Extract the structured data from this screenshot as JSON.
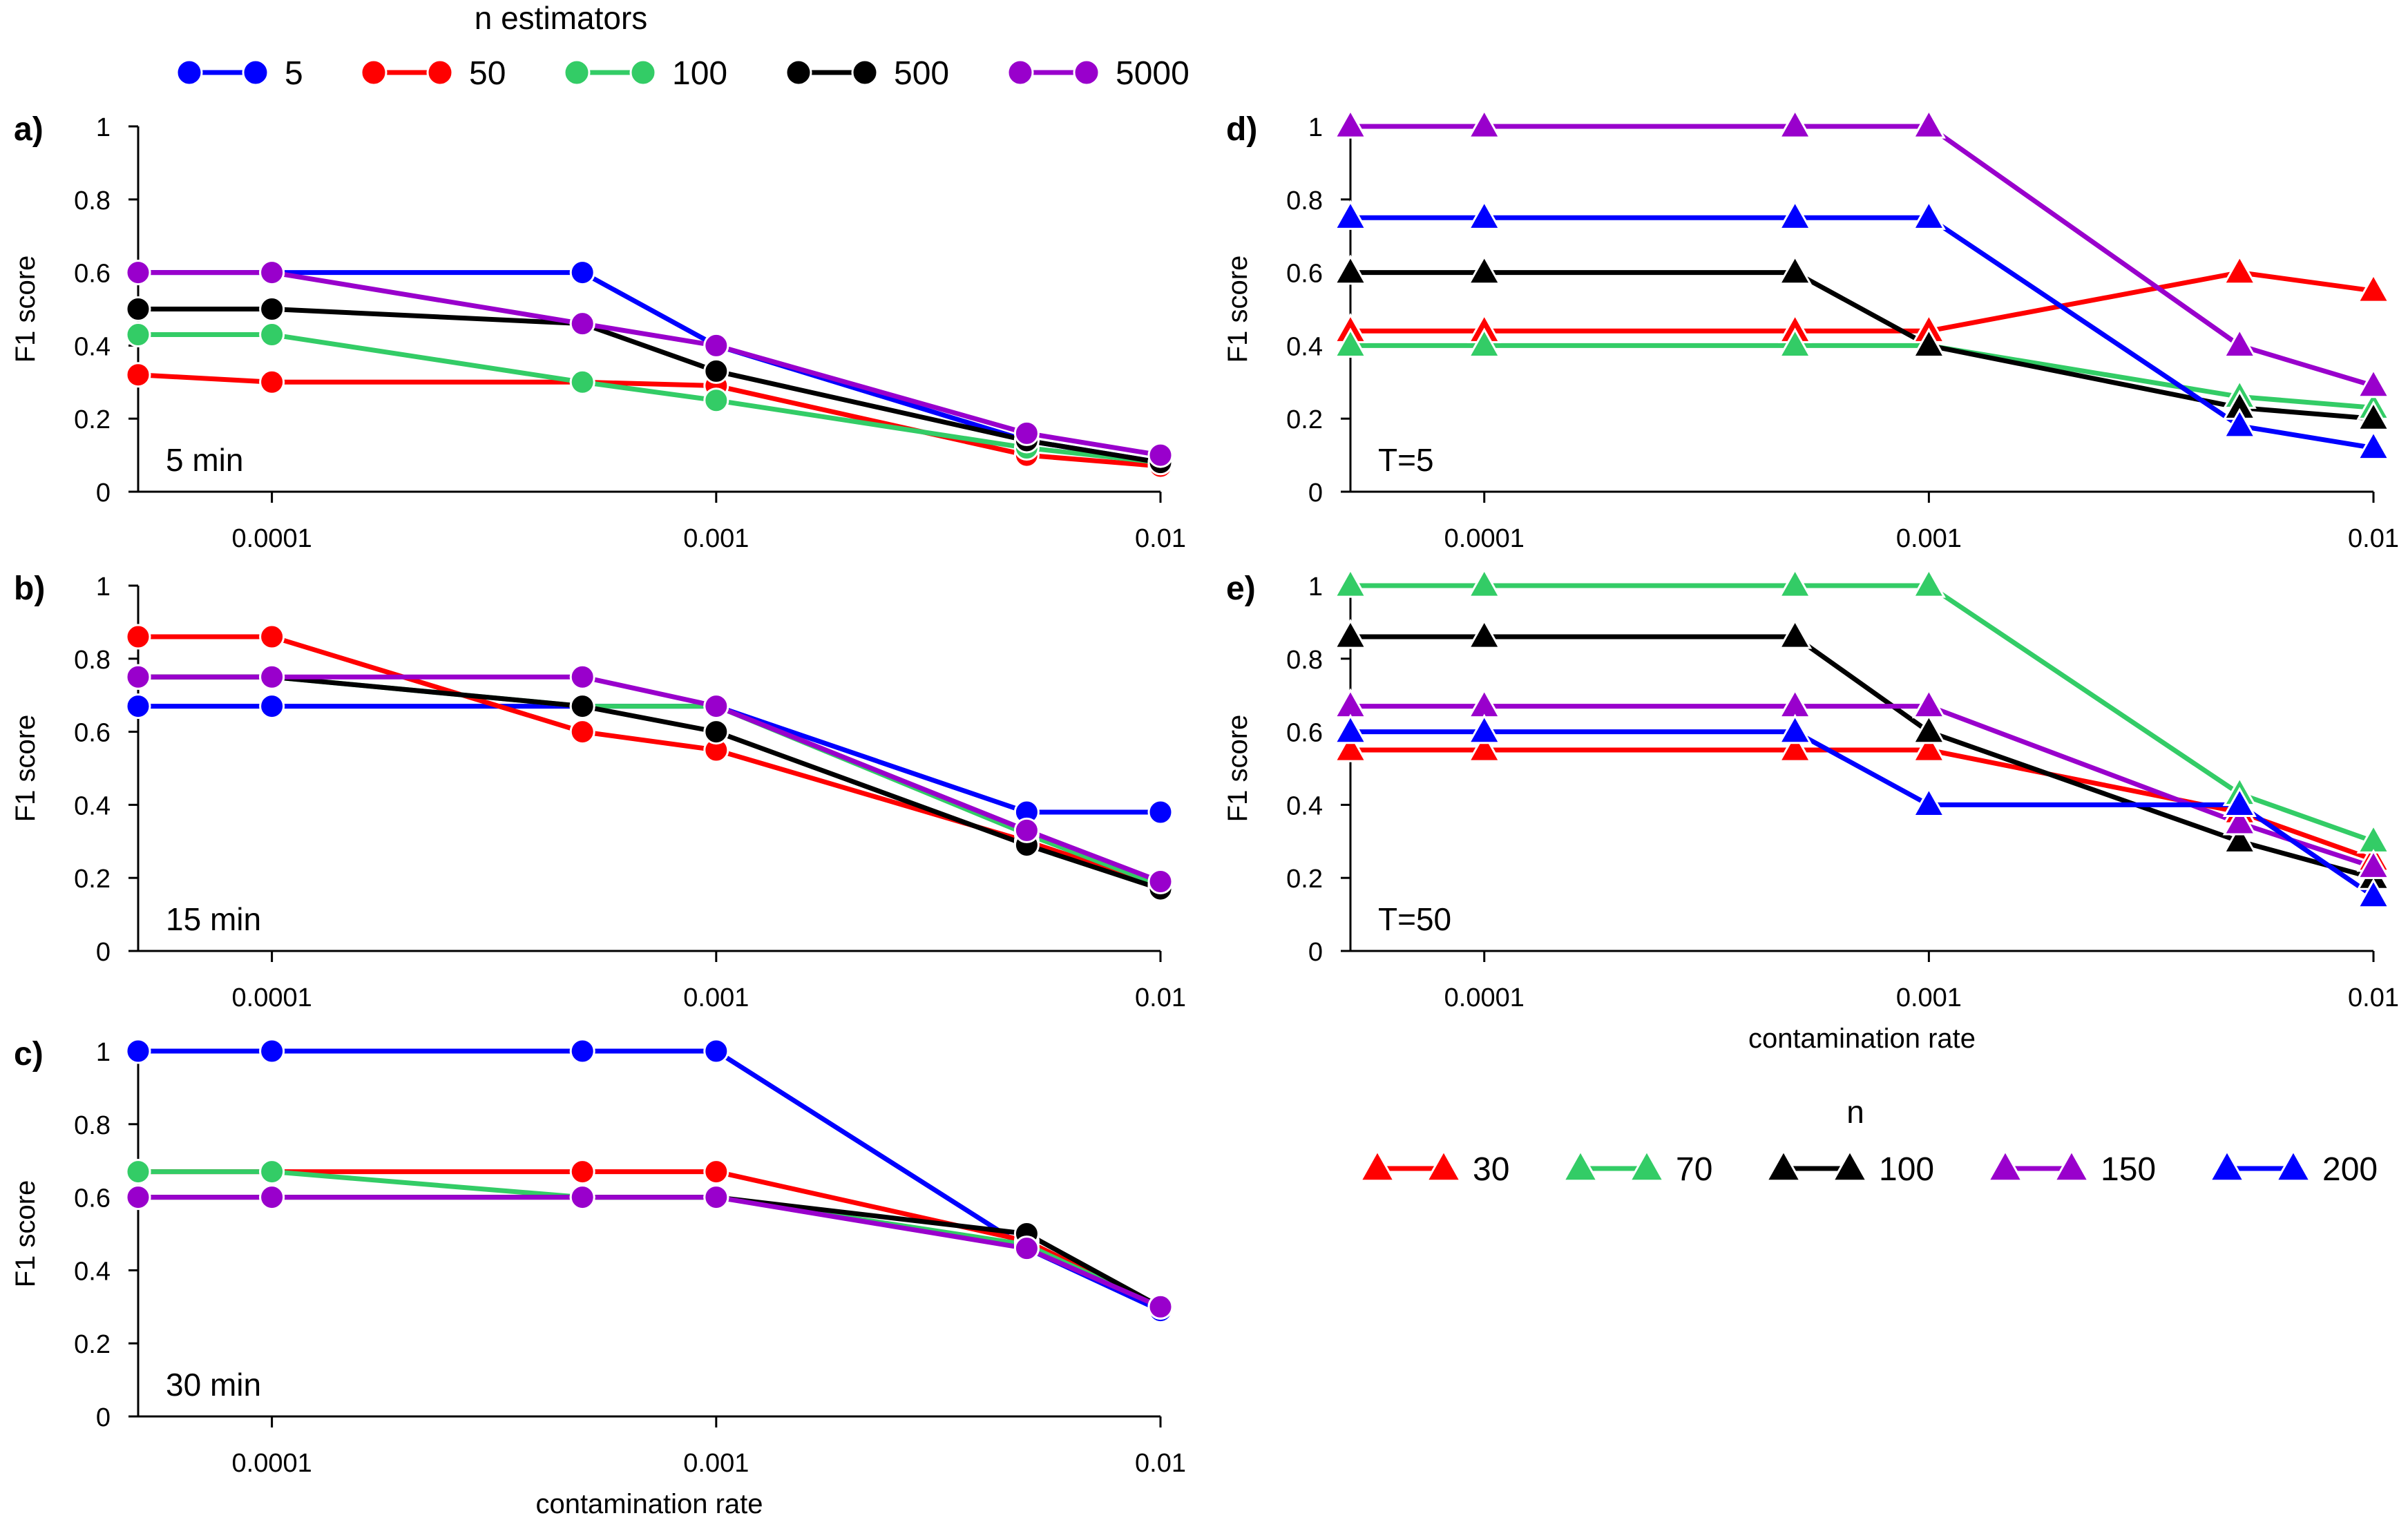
{
  "figure": {
    "legend_left": {
      "title": "n estimators",
      "marker": "circle",
      "items": [
        {
          "label": "5",
          "color": "#0000ff"
        },
        {
          "label": "50",
          "color": "#ff0000"
        },
        {
          "label": "100",
          "color": "#33cc66"
        },
        {
          "label": "500",
          "color": "#000000"
        },
        {
          "label": "5000",
          "color": "#9900cc"
        }
      ]
    },
    "legend_right": {
      "title": "n",
      "marker": "triangle",
      "items": [
        {
          "label": "30",
          "color": "#ff0000"
        },
        {
          "label": "70",
          "color": "#33cc66"
        },
        {
          "label": "100",
          "color": "#000000"
        },
        {
          "label": "150",
          "color": "#9900cc"
        },
        {
          "label": "200",
          "color": "#0000ff"
        }
      ]
    }
  },
  "chart_data": [
    {
      "id": "a",
      "panel_label": "a)",
      "annotation": "5 min",
      "type": "line",
      "marker": "circle",
      "xscale": "log",
      "x_ticks": [
        0.0001,
        0.001,
        0.01
      ],
      "x_tick_labels": [
        "0.0001",
        "0.001",
        "0.01"
      ],
      "xlim": [
        5e-05,
        0.01
      ],
      "ylabel": "F1 score",
      "xlabel": "",
      "ylim": [
        0,
        1
      ],
      "y_ticks": [
        0,
        0.2,
        0.4,
        0.6,
        0.8,
        1
      ],
      "y_tick_labels": [
        "0",
        "0.2",
        "0.4",
        "0.6",
        "0.8",
        "1"
      ],
      "x": [
        5e-05,
        0.0001,
        0.0005,
        0.001,
        0.005,
        0.01
      ],
      "series": [
        {
          "name": "5",
          "color": "#0000ff",
          "values": [
            0.6,
            0.6,
            0.6,
            0.4,
            0.14,
            0.08
          ]
        },
        {
          "name": "50",
          "color": "#ff0000",
          "values": [
            0.32,
            0.3,
            0.3,
            0.29,
            0.1,
            0.07
          ]
        },
        {
          "name": "100",
          "color": "#33cc66",
          "values": [
            0.43,
            0.43,
            0.3,
            0.25,
            0.12,
            0.08
          ]
        },
        {
          "name": "500",
          "color": "#000000",
          "values": [
            0.5,
            0.5,
            0.46,
            0.33,
            0.14,
            0.08
          ]
        },
        {
          "name": "5000",
          "color": "#9900cc",
          "values": [
            0.6,
            0.6,
            0.46,
            0.4,
            0.16,
            0.1
          ]
        }
      ]
    },
    {
      "id": "b",
      "panel_label": "b)",
      "annotation": "15 min",
      "type": "line",
      "marker": "circle",
      "xscale": "log",
      "x_ticks": [
        0.0001,
        0.001,
        0.01
      ],
      "x_tick_labels": [
        "0.0001",
        "0.001",
        "0.01"
      ],
      "xlim": [
        5e-05,
        0.01
      ],
      "ylabel": "F1 score",
      "xlabel": "",
      "ylim": [
        0,
        1
      ],
      "y_ticks": [
        0,
        0.2,
        0.4,
        0.6,
        0.8,
        1
      ],
      "y_tick_labels": [
        "0",
        "0.2",
        "0.4",
        "0.6",
        "0.8",
        "1"
      ],
      "x": [
        5e-05,
        0.0001,
        0.0005,
        0.001,
        0.005,
        0.01
      ],
      "series": [
        {
          "name": "5",
          "color": "#0000ff",
          "values": [
            0.67,
            0.67,
            0.67,
            0.67,
            0.38,
            0.38
          ]
        },
        {
          "name": "50",
          "color": "#ff0000",
          "values": [
            0.86,
            0.86,
            0.6,
            0.55,
            0.3,
            0.18
          ]
        },
        {
          "name": "100",
          "color": "#33cc66",
          "values": [
            0.75,
            0.75,
            0.67,
            0.67,
            0.32,
            0.18
          ]
        },
        {
          "name": "500",
          "color": "#000000",
          "values": [
            0.75,
            0.75,
            0.67,
            0.6,
            0.29,
            0.17
          ]
        },
        {
          "name": "5000",
          "color": "#9900cc",
          "values": [
            0.75,
            0.75,
            0.75,
            0.67,
            0.33,
            0.19
          ]
        }
      ]
    },
    {
      "id": "c",
      "panel_label": "c)",
      "annotation": "30 min",
      "type": "line",
      "marker": "circle",
      "xscale": "log",
      "x_ticks": [
        0.0001,
        0.001,
        0.01
      ],
      "x_tick_labels": [
        "0.0001",
        "0.001",
        "0.01"
      ],
      "xlim": [
        5e-05,
        0.01
      ],
      "ylabel": "F1 score",
      "xlabel": "contamination rate",
      "ylim": [
        0,
        1
      ],
      "y_ticks": [
        0,
        0.2,
        0.4,
        0.6,
        0.8,
        1
      ],
      "y_tick_labels": [
        "0",
        "0.2",
        "0.4",
        "0.6",
        "0.8",
        "1"
      ],
      "x": [
        5e-05,
        0.0001,
        0.0005,
        0.001,
        0.005,
        0.01
      ],
      "series": [
        {
          "name": "5",
          "color": "#0000ff",
          "values": [
            1,
            1,
            1,
            1,
            0.46,
            0.29
          ]
        },
        {
          "name": "50",
          "color": "#ff0000",
          "values": [
            0.67,
            0.67,
            0.67,
            0.67,
            0.48,
            0.3
          ]
        },
        {
          "name": "100",
          "color": "#33cc66",
          "values": [
            0.67,
            0.67,
            0.6,
            0.6,
            0.47,
            0.3
          ]
        },
        {
          "name": "500",
          "color": "#000000",
          "values": [
            0.6,
            0.6,
            0.6,
            0.6,
            0.5,
            0.3
          ]
        },
        {
          "name": "5000",
          "color": "#9900cc",
          "values": [
            0.6,
            0.6,
            0.6,
            0.6,
            0.46,
            0.3
          ]
        }
      ]
    },
    {
      "id": "d",
      "panel_label": "d)",
      "annotation": "T=5",
      "type": "line",
      "marker": "triangle",
      "xscale": "log",
      "x_ticks": [
        0.0001,
        0.001,
        0.01
      ],
      "x_tick_labels": [
        "0.0001",
        "0.001",
        "0.01"
      ],
      "xlim": [
        5e-05,
        0.01
      ],
      "ylabel": "F1 score",
      "xlabel": "",
      "ylim": [
        0,
        1
      ],
      "y_ticks": [
        0,
        0.2,
        0.4,
        0.6,
        0.8,
        1
      ],
      "y_tick_labels": [
        "0",
        "0.2",
        "0.4",
        "0.6",
        "0.8",
        "1"
      ],
      "x": [
        5e-05,
        0.0001,
        0.0005,
        0.001,
        0.005,
        0.01
      ],
      "series": [
        {
          "name": "30",
          "color": "#ff0000",
          "values": [
            0.44,
            0.44,
            0.44,
            0.44,
            0.6,
            0.55
          ]
        },
        {
          "name": "70",
          "color": "#33cc66",
          "values": [
            0.4,
            0.4,
            0.4,
            0.4,
            0.26,
            0.23
          ]
        },
        {
          "name": "100",
          "color": "#000000",
          "values": [
            0.6,
            0.6,
            0.6,
            0.4,
            0.23,
            0.2
          ]
        },
        {
          "name": "150",
          "color": "#9900cc",
          "values": [
            1,
            1,
            1,
            1,
            0.4,
            0.29
          ]
        },
        {
          "name": "200",
          "color": "#0000ff",
          "values": [
            0.75,
            0.75,
            0.75,
            0.75,
            0.18,
            0.12
          ]
        }
      ]
    },
    {
      "id": "e",
      "panel_label": "e)",
      "annotation": "T=50",
      "type": "line",
      "marker": "triangle",
      "xscale": "log",
      "x_ticks": [
        0.0001,
        0.001,
        0.01
      ],
      "x_tick_labels": [
        "0.0001",
        "0.001",
        "0.01"
      ],
      "xlim": [
        5e-05,
        0.01
      ],
      "ylabel": "F1 score",
      "xlabel": "contamination rate",
      "ylim": [
        0,
        1
      ],
      "y_ticks": [
        0,
        0.2,
        0.4,
        0.6,
        0.8,
        1
      ],
      "y_tick_labels": [
        "0",
        "0.2",
        "0.4",
        "0.6",
        "0.8",
        "1"
      ],
      "x": [
        5e-05,
        0.0001,
        0.0005,
        0.001,
        0.005,
        0.01
      ],
      "series": [
        {
          "name": "30",
          "color": "#ff0000",
          "values": [
            0.55,
            0.55,
            0.55,
            0.55,
            0.38,
            0.25
          ]
        },
        {
          "name": "70",
          "color": "#33cc66",
          "values": [
            1,
            1,
            1,
            1,
            0.43,
            0.3
          ]
        },
        {
          "name": "100",
          "color": "#000000",
          "values": [
            0.86,
            0.86,
            0.86,
            0.6,
            0.3,
            0.2
          ]
        },
        {
          "name": "150",
          "color": "#9900cc",
          "values": [
            0.67,
            0.67,
            0.67,
            0.67,
            0.35,
            0.23
          ]
        },
        {
          "name": "200",
          "color": "#0000ff",
          "values": [
            0.6,
            0.6,
            0.6,
            0.4,
            0.4,
            0.15
          ]
        }
      ]
    }
  ]
}
